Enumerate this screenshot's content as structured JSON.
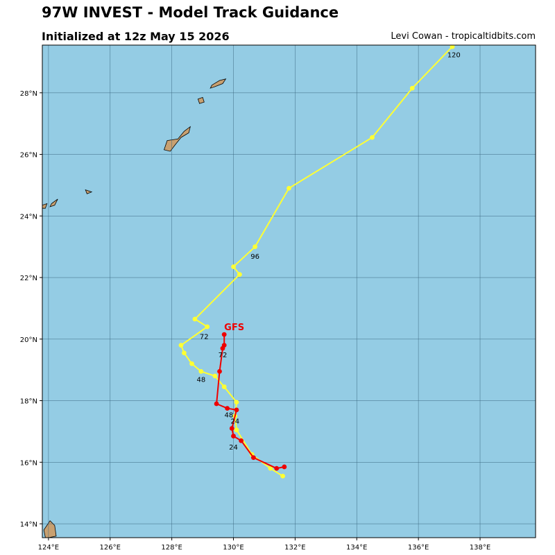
{
  "header": {
    "title": "97W INVEST - Model Track Guidance",
    "subtitle": "Initialized at 12z May 15 2026",
    "credit": "Levi Cowan - tropicaltidbits.com"
  },
  "map": {
    "lon_range": [
      123.8,
      139.8
    ],
    "lat_range": [
      13.55,
      29.55
    ],
    "lon_ticks": [
      124,
      126,
      128,
      130,
      132,
      134,
      136,
      138
    ],
    "lon_tick_labels": [
      "124°E",
      "126°E",
      "128°E",
      "130°E",
      "132°E",
      "134°E",
      "136°E",
      "138°E"
    ],
    "lat_ticks": [
      14,
      16,
      18,
      20,
      22,
      24,
      26,
      28
    ],
    "lat_tick_labels": [
      "14°N",
      "16°N",
      "18°N",
      "20°N",
      "22°N",
      "24°N",
      "26°N",
      "28°N"
    ],
    "ocean_color": "#94cce4",
    "land_color": "#c8a070",
    "grid_color": "#3a6680"
  },
  "tracks": [
    {
      "label": "",
      "color": "#ffff33",
      "points": [
        [
          131.6,
          15.55
        ],
        [
          131.2,
          15.8
        ],
        [
          130.6,
          16.25
        ],
        [
          130.1,
          17.05
        ],
        [
          130.05,
          17.5
        ],
        [
          130.1,
          17.95
        ],
        [
          129.7,
          18.45
        ],
        [
          129.4,
          18.8
        ],
        [
          128.95,
          18.95
        ],
        [
          128.65,
          19.2
        ],
        [
          128.4,
          19.55
        ],
        [
          128.3,
          19.8
        ],
        [
          129.15,
          20.4
        ],
        [
          128.75,
          20.65
        ],
        [
          130.2,
          22.1
        ],
        [
          130.0,
          22.35
        ],
        [
          130.7,
          23.0
        ],
        [
          131.8,
          24.9
        ],
        [
          134.5,
          26.55
        ],
        [
          135.8,
          28.15
        ],
        [
          137.1,
          29.5
        ]
      ],
      "hour_labels": [
        {
          "text": "24",
          "lon": 130.05,
          "lat": 17.35
        },
        {
          "text": "48",
          "lon": 128.95,
          "lat": 18.7
        },
        {
          "text": "72",
          "lon": 129.05,
          "lat": 20.1
        },
        {
          "text": "96",
          "lon": 130.7,
          "lat": 22.7
        },
        {
          "text": "120",
          "lon": 137.15,
          "lat": 29.25
        }
      ]
    },
    {
      "label": "GFS",
      "label_pos": {
        "lon": 129.7,
        "lat": 20.4
      },
      "color": "#ee0000",
      "points": [
        [
          131.65,
          15.85
        ],
        [
          131.4,
          15.8
        ],
        [
          130.65,
          16.15
        ],
        [
          130.25,
          16.7
        ],
        [
          130.0,
          16.85
        ],
        [
          129.95,
          17.1
        ],
        [
          130.1,
          17.7
        ],
        [
          129.8,
          17.75
        ],
        [
          129.45,
          17.9
        ],
        [
          129.55,
          18.95
        ],
        [
          129.65,
          19.7
        ],
        [
          129.7,
          19.8
        ],
        [
          129.7,
          20.15
        ]
      ],
      "hour_labels": [
        {
          "text": "24",
          "lon": 130.0,
          "lat": 16.5
        },
        {
          "text": "48",
          "lon": 129.85,
          "lat": 17.55
        },
        {
          "text": "72",
          "lon": 129.65,
          "lat": 19.5
        }
      ]
    }
  ],
  "islands": [
    [
      [
        128.2,
        26.5
      ],
      [
        128.4,
        26.75
      ],
      [
        128.6,
        26.9
      ],
      [
        128.55,
        26.7
      ],
      [
        128.3,
        26.55
      ],
      [
        128.1,
        26.3
      ],
      [
        127.95,
        26.1
      ],
      [
        127.75,
        26.15
      ],
      [
        127.85,
        26.45
      ]
    ],
    [
      [
        129.3,
        28.25
      ],
      [
        129.55,
        28.4
      ],
      [
        129.75,
        28.45
      ],
      [
        129.65,
        28.3
      ],
      [
        129.4,
        28.2
      ],
      [
        129.25,
        28.15
      ]
    ],
    [
      [
        128.85,
        27.8
      ],
      [
        129.0,
        27.85
      ],
      [
        129.05,
        27.7
      ],
      [
        128.9,
        27.65
      ]
    ],
    [
      [
        125.2,
        24.85
      ],
      [
        125.4,
        24.78
      ],
      [
        125.25,
        24.72
      ]
    ],
    [
      [
        124.1,
        24.4
      ],
      [
        124.3,
        24.55
      ],
      [
        124.2,
        24.35
      ],
      [
        124.05,
        24.3
      ]
    ],
    [
      [
        123.8,
        24.35
      ],
      [
        123.95,
        24.4
      ],
      [
        123.9,
        24.25
      ],
      [
        123.8,
        24.25
      ]
    ],
    [
      [
        123.85,
        13.8
      ],
      [
        124.05,
        14.1
      ],
      [
        124.2,
        13.95
      ],
      [
        124.25,
        13.6
      ],
      [
        124.0,
        13.55
      ],
      [
        123.9,
        13.55
      ]
    ]
  ]
}
